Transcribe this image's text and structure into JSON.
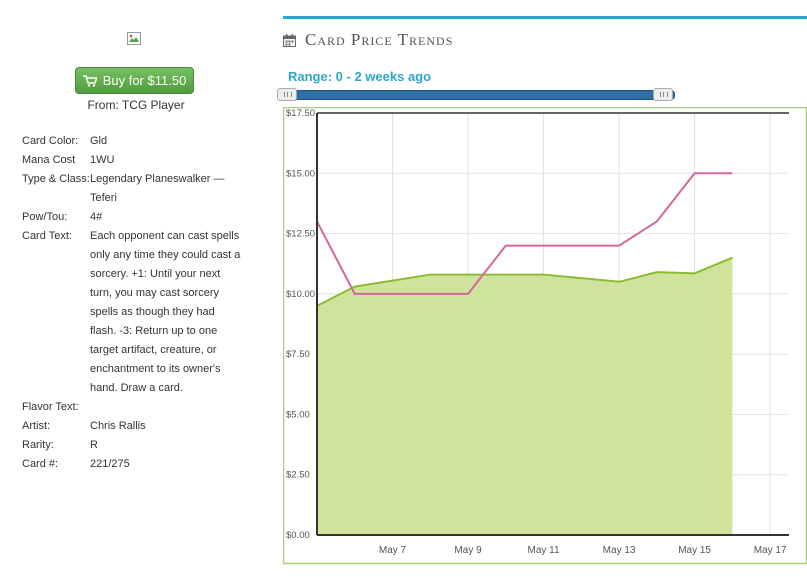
{
  "buy": {
    "label": "Buy for $11.50"
  },
  "from": "From: TCG Player",
  "card": {
    "color_label": "Card Color:",
    "color": "Gld",
    "mana_label": "Mana Cost",
    "mana": "1WU",
    "type_label": "Type & Class:",
    "type": "Legendary Planeswalker — Teferi",
    "pow_label": "Pow/Tou:",
    "pow": "4#",
    "text_label": "Card Text:",
    "text": "Each opponent can cast spells only any time they could cast a sorcery. +1: Until your next turn, you may cast sorcery spells as though they had flash. -3: Return up to one target artifact, creature, or enchantment to its owner's hand. Draw a card.",
    "flavor_label": "Flavor Text:",
    "flavor": "",
    "artist_label": "Artist:",
    "artist": "Chris Rallis",
    "rarity_label": "Rarity:",
    "rarity": "R",
    "num_label": "Card #:",
    "num": "221/275"
  },
  "panel": {
    "title": "Card Price Trends",
    "range": "Range: 0 - 2 weeks ago"
  },
  "slider": {
    "low": 0,
    "high": 2,
    "max": 2
  },
  "colors": {
    "fill": "#cfe39c",
    "fill_line": "#8cbc31",
    "high_line": "#d2699e",
    "accent": "#27a8c4"
  },
  "chart_data": {
    "type": "area",
    "x_start": "May 5",
    "x_ticks": [
      "May 7",
      "May 9",
      "May 11",
      "May 13",
      "May 15",
      "May 17"
    ],
    "y_ticks": [
      "$0.00",
      "$2.50",
      "$5.00",
      "$7.50",
      "$10.00",
      "$12.50",
      "$15.00",
      "$17.50"
    ],
    "ylim": [
      0,
      17.5
    ],
    "grid": true,
    "series": [
      {
        "x": [
          5,
          6,
          7,
          8,
          9,
          10,
          11,
          12,
          13,
          14,
          15,
          16
        ],
        "values": [
          9.5,
          10.3,
          10.55,
          10.8,
          10.8,
          10.8,
          10.8,
          10.65,
          10.5,
          10.9,
          10.85,
          11.5
        ]
      },
      {
        "x": [
          5,
          6,
          7,
          8,
          9,
          10,
          11,
          12,
          13,
          14,
          15,
          16
        ],
        "values": [
          13.0,
          10.0,
          10.0,
          10.0,
          10.0,
          12.0,
          12.0,
          12.0,
          12.0,
          13.0,
          15.0,
          15.0
        ]
      }
    ]
  }
}
